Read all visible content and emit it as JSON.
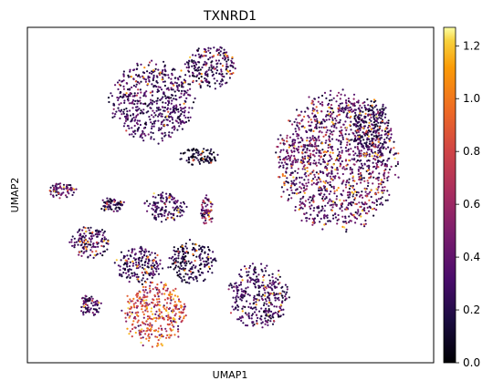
{
  "chart_data": {
    "type": "scatter",
    "title": "TXNRD1",
    "xlabel": "UMAP1",
    "ylabel": "UMAP2",
    "axis_ticks_shown": false,
    "grid": false,
    "colormap": "inferno",
    "colorbar": {
      "range": [
        0.0,
        1.27
      ],
      "ticks": [
        0.0,
        0.2,
        0.4,
        0.6,
        0.8,
        1.0,
        1.2
      ],
      "tick_labels": [
        "0.0",
        "0.2",
        "0.4",
        "0.6",
        "0.8",
        "1.0",
        "1.2"
      ]
    },
    "clusters": [
      {
        "id": "c1",
        "center": [
          -5.0,
          6.3
        ],
        "radius": [
          2.6,
          2.2
        ],
        "mean_expr": 0.3,
        "high_fraction": 0.06
      },
      {
        "id": "c2",
        "center": [
          -1.3,
          8.3
        ],
        "radius": [
          1.6,
          1.2
        ],
        "mean_expr": 0.28,
        "high_fraction": 0.06
      },
      {
        "id": "c3",
        "center": [
          -2.0,
          3.3
        ],
        "radius": [
          1.2,
          0.5
        ],
        "mean_expr": 0.12,
        "high_fraction": 0.03
      },
      {
        "id": "c4",
        "center": [
          6.8,
          3.0
        ],
        "radius": [
          3.8,
          3.8
        ],
        "mean_expr": 0.38,
        "high_fraction": 0.12
      },
      {
        "id": "c5",
        "center": [
          9.0,
          4.8
        ],
        "radius": [
          1.2,
          1.6
        ],
        "mean_expr": 0.22,
        "high_fraction": 0.04
      },
      {
        "id": "c6",
        "center": [
          -10.8,
          1.4
        ],
        "radius": [
          0.9,
          0.4
        ],
        "mean_expr": 0.35,
        "high_fraction": 0.08
      },
      {
        "id": "c7",
        "center": [
          -7.6,
          0.6
        ],
        "radius": [
          0.8,
          0.4
        ],
        "mean_expr": 0.25,
        "high_fraction": 0.05
      },
      {
        "id": "c8",
        "center": [
          -4.2,
          0.5
        ],
        "radius": [
          1.3,
          0.8
        ],
        "mean_expr": 0.3,
        "high_fraction": 0.06
      },
      {
        "id": "c9",
        "center": [
          -1.5,
          0.3
        ],
        "radius": [
          0.4,
          0.8
        ],
        "mean_expr": 0.45,
        "high_fraction": 0.12
      },
      {
        "id": "c10",
        "center": [
          -9.0,
          -1.5
        ],
        "radius": [
          1.3,
          0.9
        ],
        "mean_expr": 0.3,
        "high_fraction": 0.07
      },
      {
        "id": "c11",
        "center": [
          -5.9,
          -2.8
        ],
        "radius": [
          1.6,
          1.0
        ],
        "mean_expr": 0.28,
        "high_fraction": 0.07
      },
      {
        "id": "c12",
        "center": [
          -2.5,
          -2.6
        ],
        "radius": [
          1.5,
          1.2
        ],
        "mean_expr": 0.18,
        "high_fraction": 0.05
      },
      {
        "id": "c13",
        "center": [
          1.8,
          -4.5
        ],
        "radius": [
          1.9,
          1.8
        ],
        "mean_expr": 0.3,
        "high_fraction": 0.07
      },
      {
        "id": "c14",
        "center": [
          -4.8,
          -5.5
        ],
        "radius": [
          2.0,
          1.8
        ],
        "mean_expr": 0.72,
        "high_fraction": 0.35
      },
      {
        "id": "c15",
        "center": [
          -9.0,
          -5.0
        ],
        "radius": [
          0.7,
          0.6
        ],
        "mean_expr": 0.32,
        "high_fraction": 0.06
      }
    ]
  }
}
